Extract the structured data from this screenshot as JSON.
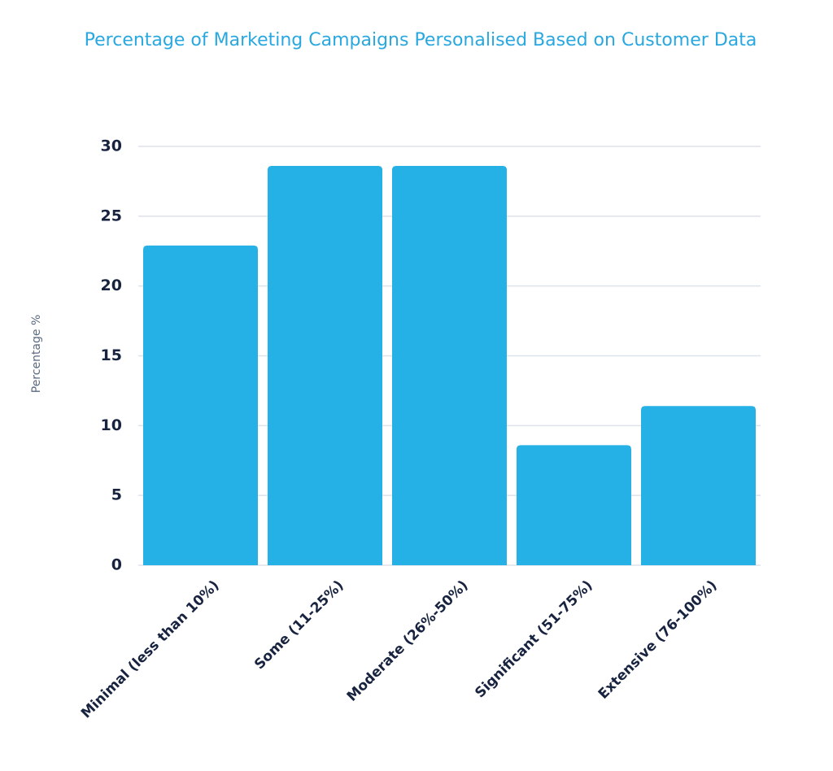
{
  "chart_data": {
    "type": "bar",
    "title": "Percentage of Marketing Campaigns Personalised Based on Customer Data",
    "y_label": "Percentage %",
    "categories": [
      "Minimal (less than 10%)",
      "Some (11-25%)",
      "Moderate (26%-50%)",
      "Significant (51-75%)",
      "Extensive (76-100%)"
    ],
    "values": [
      22.9,
      28.6,
      28.6,
      8.6,
      11.4
    ],
    "color": "#25b0e6",
    "ylim": [
      0,
      30
    ],
    "yticks": [
      0,
      5,
      10,
      15,
      20,
      25,
      30
    ],
    "grid": true
  }
}
